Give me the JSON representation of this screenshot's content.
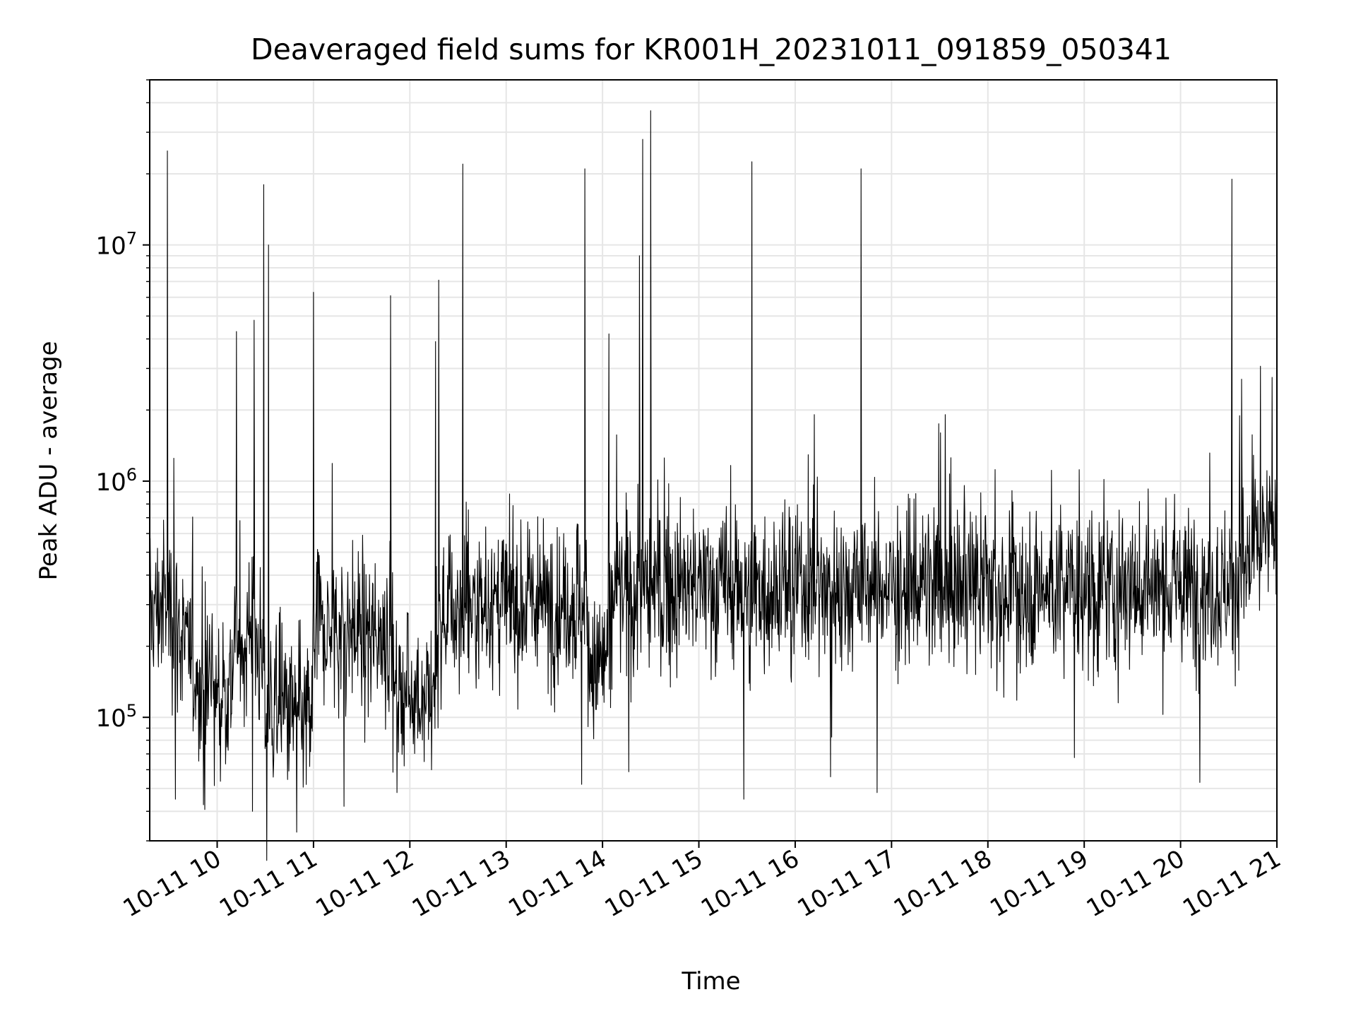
{
  "chart_data": {
    "type": "line",
    "title": "Deaveraged field sums for KR001H_20231011_091859_050341",
    "xlabel": "Time",
    "ylabel": "Peak ADU - average",
    "x_tick_labels": [
      "10-11 10",
      "10-11 11",
      "10-11 12",
      "10-11 13",
      "10-11 14",
      "10-11 15",
      "10-11 16",
      "10-11 17",
      "10-11 18",
      "10-11 19",
      "10-11 20",
      "10-11 21"
    ],
    "y_tick_labels": [
      {
        "base": "10",
        "exp": "5",
        "value": 100000
      },
      {
        "base": "10",
        "exp": "6",
        "value": 1000000
      },
      {
        "base": "10",
        "exp": "7",
        "value": 10000000
      }
    ],
    "x_range": [
      "2023-10-11 09:18",
      "2023-10-11 21:00"
    ],
    "y_range": [
      30000,
      50000000
    ],
    "y_scale": "log",
    "grid": true,
    "line_color": "#000000",
    "series": [
      {
        "baseline": [
          [
            "2023-10-11 09:18",
            280000
          ],
          [
            "2023-10-11 09:30",
            300000
          ],
          [
            "2023-10-11 09:40",
            200000
          ],
          [
            "2023-10-11 09:50",
            130000
          ],
          [
            "2023-10-11 10:05",
            115000
          ],
          [
            "2023-10-11 10:12",
            210000
          ],
          [
            "2023-10-11 10:25",
            230000
          ],
          [
            "2023-10-11 10:30",
            110000
          ],
          [
            "2023-10-11 10:45",
            105000
          ],
          [
            "2023-10-11 10:59",
            95000
          ],
          [
            "2023-10-11 11:00",
            230000
          ],
          [
            "2023-10-11 11:30",
            240000
          ],
          [
            "2023-10-11 11:48",
            230000
          ],
          [
            "2023-10-11 11:50",
            130000
          ],
          [
            "2023-10-11 12:15",
            125000
          ],
          [
            "2023-10-11 12:20",
            280000
          ],
          [
            "2023-10-11 13:00",
            300000
          ],
          [
            "2023-10-11 13:50",
            310000
          ],
          [
            "2023-10-11 13:52",
            150000
          ],
          [
            "2023-10-11 14:02",
            180000
          ],
          [
            "2023-10-11 14:08",
            330000
          ],
          [
            "2023-10-11 15:00",
            360000
          ],
          [
            "2023-10-11 17:00",
            360000
          ],
          [
            "2023-10-11 19:00",
            350000
          ],
          [
            "2023-10-11 20:30",
            360000
          ],
          [
            "2023-10-11 20:50",
            520000
          ],
          [
            "2023-10-11 21:00",
            650000
          ]
        ],
        "spikes": [
          [
            "2023-10-11 09:29",
            25000000
          ],
          [
            "2023-10-11 09:33",
            1250000
          ],
          [
            "2023-10-11 10:12",
            4300000
          ],
          [
            "2023-10-11 10:23",
            4800000
          ],
          [
            "2023-10-11 10:29",
            18000000
          ],
          [
            "2023-10-11 10:32",
            10000000
          ],
          [
            "2023-10-11 11:00",
            6300000
          ],
          [
            "2023-10-11 11:48",
            6100000
          ],
          [
            "2023-10-11 12:16",
            3900000
          ],
          [
            "2023-10-11 12:18",
            7100000
          ],
          [
            "2023-10-11 12:33",
            22000000
          ],
          [
            "2023-10-11 13:49",
            21000000
          ],
          [
            "2023-10-11 14:04",
            4200000
          ],
          [
            "2023-10-11 14:23",
            9000000
          ],
          [
            "2023-10-11 14:25",
            28000000
          ],
          [
            "2023-10-11 14:30",
            37000000
          ],
          [
            "2023-10-11 15:33",
            22500000
          ],
          [
            "2023-10-11 16:41",
            21000000
          ],
          [
            "2023-10-11 20:32",
            19000000
          ],
          [
            "2023-10-11 20:38",
            2700000
          ],
          [
            "2023-10-11 20:57",
            2750000
          ]
        ],
        "dips": [
          [
            "2023-10-11 09:34",
            45000
          ],
          [
            "2023-10-11 10:22",
            40000
          ],
          [
            "2023-10-11 11:19",
            42000
          ],
          [
            "2023-10-11 11:52",
            48000
          ],
          [
            "2023-10-11 13:47",
            52000
          ],
          [
            "2023-10-11 15:28",
            45000
          ],
          [
            "2023-10-11 16:22",
            56000
          ],
          [
            "2023-10-11 16:51",
            48000
          ],
          [
            "2023-10-11 20:12",
            53000
          ]
        ]
      }
    ]
  }
}
